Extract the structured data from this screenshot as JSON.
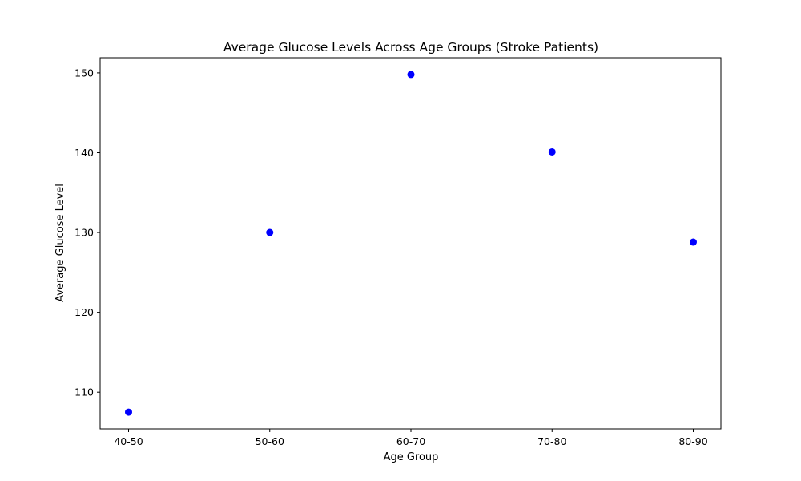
{
  "chart_data": {
    "type": "scatter",
    "title": "Average Glucose Levels Across Age Groups (Stroke Patients)",
    "xlabel": "Age Group",
    "ylabel": "Average Glucose Level",
    "categories": [
      "40-50",
      "50-60",
      "60-70",
      "70-80",
      "80-90"
    ],
    "series": [
      {
        "values": [
          107.5,
          130.0,
          149.8,
          140.1,
          128.8
        ],
        "color": "#0000ff"
      }
    ],
    "yticks": [
      110,
      120,
      130,
      140,
      150
    ],
    "ylim": [
      105.4,
      151.9
    ],
    "grid": false,
    "legend": "none"
  }
}
